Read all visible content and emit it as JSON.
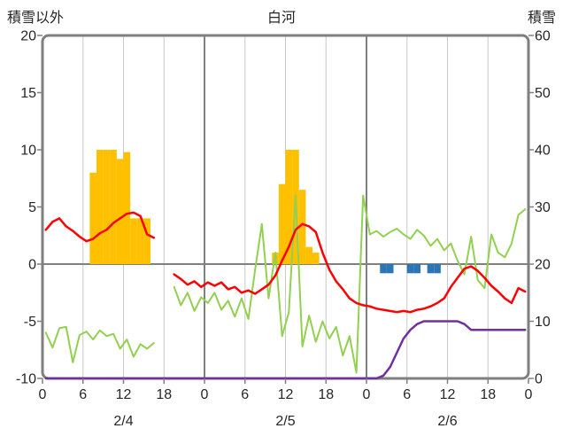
{
  "header": {
    "left_axis_title": "積雪以外",
    "title": "白河",
    "right_axis_title": "積雪"
  },
  "chart_data": {
    "type": "combo",
    "title": "白河",
    "x_axis": {
      "total_hours": 72,
      "tick_step_hours": 6,
      "tick_labels": [
        "0",
        "6",
        "12",
        "18",
        "0",
        "6",
        "12",
        "18",
        "0",
        "6",
        "12",
        "18",
        "0"
      ],
      "day_labels": [
        "2/4",
        "2/5",
        "2/6"
      ],
      "day_boundaries_hours": [
        24,
        48
      ]
    },
    "left_axis": {
      "label": "積雪以外",
      "min": -10,
      "max": 20,
      "ticks": [
        20,
        15,
        10,
        5,
        0,
        -5,
        -10
      ]
    },
    "right_axis": {
      "label": "積雪",
      "min": 0,
      "max": 60,
      "ticks": [
        60,
        50,
        40,
        30,
        20,
        10,
        0
      ]
    },
    "series": [
      {
        "name": "orange-bars",
        "type": "bar",
        "axis": "left",
        "color": "#FFC000",
        "values_by_hour": {
          "7": 8,
          "8": 10,
          "9": 10,
          "10": 10,
          "11": 9.2,
          "12": 9.8,
          "13": 4,
          "14": 4,
          "15": 4,
          "34": 1,
          "35": 7,
          "36": 10,
          "37": 10,
          "38": 6.5,
          "39": 1.5,
          "40": 1
        }
      },
      {
        "name": "blue-bars",
        "type": "bar",
        "axis": "left",
        "color": "#2E75B6",
        "values_by_hour": {
          "50": -0.8,
          "51": -0.8,
          "54": -0.8,
          "55": -0.8,
          "57": -0.8,
          "58": -0.8
        }
      },
      {
        "name": "green-line",
        "type": "line",
        "axis": "left",
        "color": "#92D050",
        "width": 2,
        "values": [
          -6.0,
          -7.3,
          -5.6,
          -5.5,
          -8.6,
          -6.2,
          -5.9,
          -6.6,
          -5.8,
          -6.3,
          -6.1,
          -7.4,
          -6.6,
          -8.1,
          -7.0,
          -7.4,
          -6.9,
          null,
          null,
          -2.0,
          -3.6,
          -2.5,
          -4.1,
          -2.9,
          -3.4,
          -2.5,
          -4.0,
          -3.2,
          -4.6,
          -3.0,
          -4.8,
          -0.5,
          3.5,
          -3.0,
          1.0,
          -6.3,
          -4.2,
          6.0,
          -7.2,
          -4.5,
          -6.8,
          -5.0,
          -6.5,
          -5.5,
          -8.0,
          -6.3,
          -9.5,
          6.0,
          2.6,
          2.9,
          2.4,
          2.8,
          3.1,
          2.6,
          2.2,
          3.0,
          2.5,
          1.6,
          2.2,
          1.2,
          1.8,
          0.3,
          -0.9,
          2.4,
          -1.4,
          -2.1,
          2.6,
          1.0,
          0.6,
          1.8,
          4.3,
          4.8
        ]
      },
      {
        "name": "red-line",
        "type": "line",
        "axis": "left",
        "color": "#FF0000",
        "width": 2.5,
        "values": [
          3.0,
          3.7,
          4.0,
          3.3,
          2.9,
          2.4,
          2.0,
          2.2,
          2.7,
          3.0,
          3.6,
          4.0,
          4.4,
          4.5,
          4.2,
          2.6,
          2.3,
          null,
          null,
          -0.9,
          -1.3,
          -1.8,
          -1.5,
          -2.0,
          -1.6,
          -1.9,
          -1.6,
          -2.2,
          -2.0,
          -2.5,
          -2.3,
          -2.6,
          -2.2,
          -1.8,
          -1.0,
          0.3,
          1.5,
          3.0,
          3.5,
          3.3,
          2.8,
          1.0,
          -0.5,
          -1.5,
          -2.2,
          -3.0,
          -3.4,
          -3.6,
          -3.7,
          -3.9,
          -4.0,
          -4.1,
          -4.2,
          -4.1,
          -4.2,
          -4.0,
          -3.9,
          -3.7,
          -3.4,
          -3.0,
          -2.0,
          -1.2,
          -0.4,
          -0.2,
          -0.6,
          -1.2,
          -1.9,
          -2.4,
          -3.0,
          -3.4,
          -2.1,
          -2.4
        ]
      },
      {
        "name": "purple-line",
        "type": "line",
        "axis": "right",
        "color": "#7030A0",
        "width": 2.5,
        "values": [
          0,
          0,
          0,
          0,
          0,
          0,
          0,
          0,
          0,
          0,
          0,
          0,
          0,
          0,
          0,
          0,
          0,
          0,
          0,
          0,
          0,
          0,
          0,
          0,
          0,
          0,
          0,
          0,
          0,
          0,
          0,
          0,
          0,
          0,
          0,
          0,
          0,
          0,
          0,
          0,
          0,
          0,
          0,
          0,
          0,
          0,
          0,
          0,
          0,
          0,
          0.5,
          2,
          4.5,
          7,
          8.5,
          9.5,
          10,
          10,
          10,
          10,
          10,
          10,
          9.5,
          8.5,
          8.5,
          8.5,
          8.5,
          8.5,
          8.5,
          8.5,
          8.5,
          8.5
        ]
      }
    ],
    "style": {
      "border_color": "#7F7F7F",
      "grid_color": "#C8C8C8",
      "day_line_color": "#808080",
      "zero_line_color": "#808080",
      "tick_color": "#808080",
      "text_color": "#262626",
      "background": "#FFFFFF"
    }
  }
}
